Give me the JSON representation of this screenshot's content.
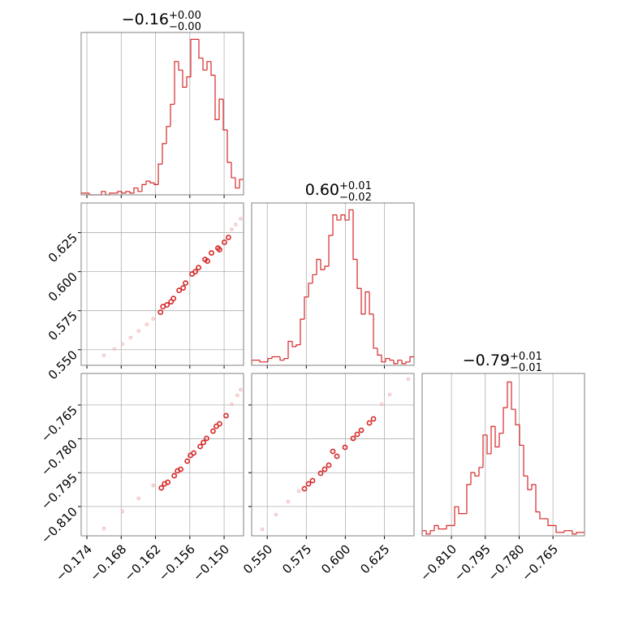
{
  "chart_data": {
    "type": "corner",
    "axes": [
      {
        "lim": [
          -0.175,
          -0.1466
        ],
        "ticks": [
          {
            "value": -0.174,
            "label": "−0.174"
          },
          {
            "value": -0.168,
            "label": "−0.168"
          },
          {
            "value": -0.162,
            "label": "−0.162"
          },
          {
            "value": -0.156,
            "label": "−0.156"
          },
          {
            "value": -0.15,
            "label": "−0.150"
          }
        ]
      },
      {
        "lim": [
          0.54,
          0.644
        ],
        "ticks": [
          {
            "value": 0.55,
            "label": "0.550"
          },
          {
            "value": 0.575,
            "label": "0.575"
          },
          {
            "value": 0.6,
            "label": "0.600"
          },
          {
            "value": 0.625,
            "label": "0.625"
          }
        ]
      },
      {
        "lim": [
          -0.823,
          -0.751
        ],
        "ticks": [
          {
            "value": -0.81,
            "label": "−0.810"
          },
          {
            "value": -0.795,
            "label": "−0.795"
          },
          {
            "value": -0.78,
            "label": "−0.780"
          },
          {
            "value": -0.765,
            "label": "−0.765"
          }
        ]
      }
    ],
    "panels": [
      {
        "type": "histogram",
        "color": "#d62728",
        "title": {
          "value": "−0.16",
          "upper": "+0.00",
          "lower": "−0.00"
        },
        "ylim": [
          0,
          190
        ],
        "bins": [
          -0.175,
          -0.17429,
          -0.17358,
          -0.17287,
          -0.17216,
          -0.17145,
          -0.17074,
          -0.17003,
          -0.16932,
          -0.16861,
          -0.1679,
          -0.16719,
          -0.16648,
          -0.16577,
          -0.16506,
          -0.16435,
          -0.16364,
          -0.16293,
          -0.16222,
          -0.16151,
          -0.1608,
          -0.16009,
          -0.15938,
          -0.15867,
          -0.15796,
          -0.15725,
          -0.15654,
          -0.15583,
          -0.15512,
          -0.15441,
          -0.1537,
          -0.15299,
          -0.15228,
          -0.15157,
          -0.15086,
          -0.15015,
          -0.14944,
          -0.14873,
          -0.14802,
          -0.14731,
          -0.1466
        ],
        "counts": [
          2,
          2,
          0,
          0,
          0,
          4,
          0,
          2,
          2,
          4,
          2,
          4,
          2,
          8,
          4,
          12,
          16,
          14,
          12,
          36,
          60,
          80,
          106,
          156,
          146,
          126,
          138,
          182,
          182,
          160,
          146,
          156,
          140,
          88,
          112,
          76,
          38,
          20,
          8,
          18
        ]
      },
      {
        "type": "scatter",
        "series": [
          {
            "color": "#f2b8b8",
            "x": [
              -0.17103,
              -0.16919,
              -0.16778,
              -0.16636,
              -0.16495,
              -0.16353,
              -0.1624,
              -0.14867,
              -0.14796,
              -0.14711
            ],
            "y": [
              0.5464,
              0.5505,
              0.5537,
              0.5578,
              0.562,
              0.5662,
              0.5698,
              0.6271,
              0.6302,
              0.6339
            ]
          },
          {
            "color": "#d62728",
            "x": [
              -0.16112,
              -0.15999,
              -0.15886,
              -0.15787,
              -0.15674,
              -0.15561,
              -0.15447,
              -0.15334,
              -0.15221,
              -0.15108,
              -0.14995,
              -0.14924,
              -0.1607,
              -0.15928,
              -0.15716,
              -0.15504,
              -0.15292,
              -0.1508
            ],
            "y": [
              0.574,
              0.5787,
              0.5828,
              0.588,
              0.5927,
              0.5985,
              0.6026,
              0.6078,
              0.612,
              0.6151,
              0.6188,
              0.6219,
              0.5776,
              0.5807,
              0.5896,
              0.6,
              0.6068,
              0.6141
            ]
          }
        ]
      },
      {
        "type": "histogram",
        "color": "#d62728",
        "title": {
          "value": "0.60",
          "upper": "+0.01",
          "lower": "−0.02"
        },
        "ylim": [
          0,
          190
        ],
        "bins": [
          0.54,
          0.5426,
          0.5452,
          0.5478,
          0.5504,
          0.553,
          0.5556,
          0.5582,
          0.5608,
          0.5634,
          0.566,
          0.5686,
          0.5712,
          0.5738,
          0.5764,
          0.579,
          0.5816,
          0.5842,
          0.5868,
          0.5894,
          0.592,
          0.5946,
          0.5972,
          0.5998,
          0.6024,
          0.605,
          0.6076,
          0.6102,
          0.6128,
          0.6154,
          0.618,
          0.6206,
          0.6232,
          0.6258,
          0.6284,
          0.631,
          0.6336,
          0.6362,
          0.6388,
          0.6414,
          0.644
        ],
        "counts": [
          6,
          6,
          4,
          4,
          8,
          10,
          10,
          6,
          8,
          28,
          22,
          24,
          54,
          80,
          96,
          106,
          124,
          112,
          116,
          152,
          176,
          170,
          176,
          170,
          182,
          124,
          90,
          60,
          86,
          60,
          20,
          12,
          4,
          8,
          6,
          2,
          6,
          2,
          4,
          10
        ]
      },
      {
        "type": "scatter",
        "series": [
          {
            "color": "#f2b8b8",
            "x": [
              -0.17103,
              -0.16778,
              -0.16495,
              -0.1624,
              -0.14867,
              -0.14768,
              -0.14711
            ],
            "y": [
              -0.81976,
              -0.8122,
              -0.80644,
              -0.80068,
              -0.76468,
              -0.76072,
              -0.7582
            ]
          },
          {
            "color": "#d62728",
            "x": [
              -0.16098,
              -0.15985,
              -0.15872,
              -0.15759,
              -0.15645,
              -0.15532,
              -0.15419,
              -0.15306,
              -0.15193,
              -0.1508,
              -0.14966,
              -0.16042,
              -0.15815,
              -0.15589,
              -0.15362,
              -0.15136
            ],
            "y": [
              -0.80176,
              -0.79924,
              -0.79636,
              -0.79348,
              -0.78988,
              -0.78628,
              -0.7834,
              -0.7798,
              -0.77656,
              -0.77332,
              -0.76972,
              -0.79996,
              -0.7942,
              -0.78736,
              -0.7816,
              -0.7744
            ]
          }
        ]
      },
      {
        "type": "scatter",
        "series": [
          {
            "color": "#f2b8b8",
            "x": [
              0.54676,
              0.5556,
              0.5634,
              0.57016,
              0.6232,
              0.6284,
              0.64036
            ],
            "y": [
              -0.82012,
              -0.81364,
              -0.80788,
              -0.8032,
              -0.76468,
              -0.76036,
              -0.75352
            ]
          },
          {
            "color": "#d62728",
            "x": [
              0.5738,
              0.579,
              0.5842,
              0.5894,
              0.5946,
              0.5998,
              0.605,
              0.6102,
              0.6154,
              0.618,
              0.5764,
              0.5868,
              0.592,
              0.6076
            ],
            "y": [
              -0.80212,
              -0.79852,
              -0.79528,
              -0.79168,
              -0.78772,
              -0.78376,
              -0.7798,
              -0.7762,
              -0.77296,
              -0.77116,
              -0.79996,
              -0.7935,
              -0.78556,
              -0.778
            ]
          }
        ]
      },
      {
        "type": "histogram",
        "color": "#d62728",
        "title": {
          "value": "−0.79",
          "upper": "+0.01",
          "lower": "−0.01"
        },
        "ylim": [
          0,
          190
        ],
        "bins": [
          -0.823,
          -0.8212,
          -0.8194,
          -0.8176,
          -0.8158,
          -0.814,
          -0.8122,
          -0.8104,
          -0.8086,
          -0.8068,
          -0.805,
          -0.8032,
          -0.8014,
          -0.7996,
          -0.7978,
          -0.796,
          -0.7942,
          -0.7924,
          -0.7906,
          -0.7888,
          -0.787,
          -0.7852,
          -0.7834,
          -0.7816,
          -0.7798,
          -0.778,
          -0.7762,
          -0.7744,
          -0.7726,
          -0.7708,
          -0.769,
          -0.7672,
          -0.7654,
          -0.7636,
          -0.7618,
          -0.76,
          -0.7582,
          -0.7564,
          -0.7546,
          -0.7528,
          -0.751
        ],
        "counts": [
          6,
          2,
          6,
          12,
          8,
          8,
          12,
          12,
          34,
          26,
          26,
          60,
          74,
          70,
          80,
          118,
          96,
          128,
          104,
          120,
          150,
          180,
          148,
          130,
          106,
          70,
          54,
          60,
          28,
          20,
          20,
          12,
          12,
          4,
          4,
          6,
          6,
          2,
          4,
          4
        ]
      }
    ]
  }
}
